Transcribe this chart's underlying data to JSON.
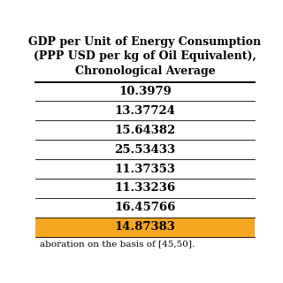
{
  "title_lines": [
    "GDP per Unit of Energy Consumption",
    "(PPP USD per kg of Oil Equivalent),",
    "Chronological Average"
  ],
  "values": [
    "10.3979",
    "13.37724",
    "15.64382",
    "25.53433",
    "11.37353",
    "11.33236",
    "16.45766",
    "14.87383"
  ],
  "row_colors": [
    "#ffffff",
    "#ffffff",
    "#ffffff",
    "#ffffff",
    "#ffffff",
    "#ffffff",
    "#ffffff",
    "#f5a623"
  ],
  "text_color_normal": "#000000",
  "footer_text_normal": "aboration on the basis of ",
  "footer_text_link": "[45,50].",
  "footer_link_color": "#4472c4",
  "background_color": "#ffffff",
  "line_color": "#000000",
  "title_fontsize": 9.0,
  "value_fontsize": 9.5,
  "footer_fontsize": 7.5
}
